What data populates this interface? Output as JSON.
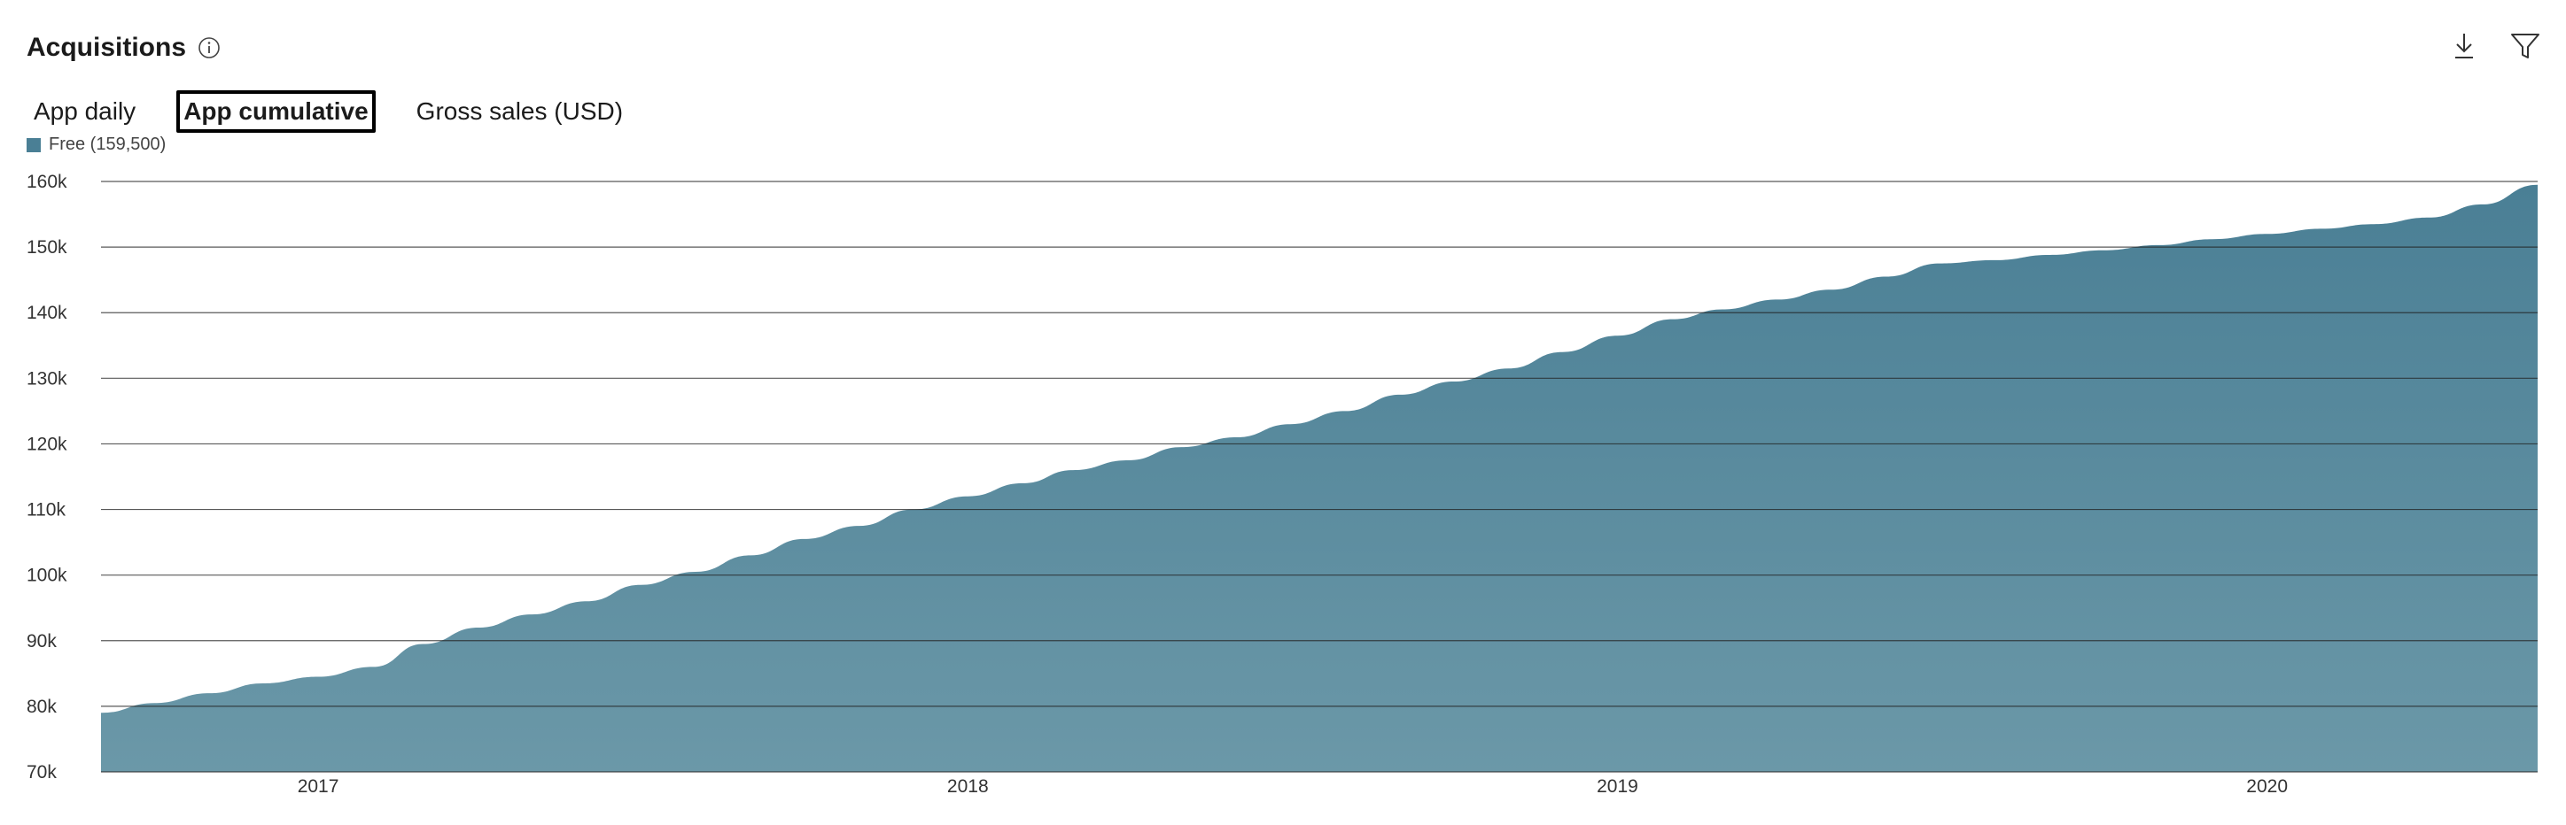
{
  "header": {
    "title": "Acquisitions",
    "info_icon": "info-icon",
    "download_icon": "download-icon",
    "filter_icon": "filter-icon"
  },
  "tabs": [
    {
      "label": "App daily",
      "active": false
    },
    {
      "label": "App cumulative",
      "active": true
    },
    {
      "label": "Gross sales (USD)",
      "active": false
    }
  ],
  "legend": {
    "label": "Free (159,500)",
    "color": "#4a7f95"
  },
  "colors": {
    "area_top": "#4a7f95",
    "area_bottom": "#6b98a8",
    "gridline": "#222222"
  },
  "chart_data": {
    "type": "area",
    "title": "",
    "xlabel": "",
    "ylabel": "",
    "x_ticks": [
      "2017",
      "2018",
      "2019",
      "2020"
    ],
    "y_ticks": [
      "70k",
      "80k",
      "90k",
      "100k",
      "110k",
      "120k",
      "130k",
      "140k",
      "150k",
      "160k"
    ],
    "xlim": [
      "2016-09-01",
      "2020-06-01"
    ],
    "ylim": [
      70000,
      160000
    ],
    "grid": true,
    "legend_position": "top-left",
    "series": [
      {
        "name": "Free (159,500)",
        "x": [
          "2016-09-01",
          "2016-10-01",
          "2016-11-01",
          "2016-12-01",
          "2017-01-01",
          "2017-02-01",
          "2017-03-01",
          "2017-04-01",
          "2017-05-01",
          "2017-06-01",
          "2017-07-01",
          "2017-08-01",
          "2017-09-01",
          "2017-10-01",
          "2017-11-01",
          "2017-12-01",
          "2018-01-01",
          "2018-02-01",
          "2018-03-01",
          "2018-04-01",
          "2018-05-01",
          "2018-06-01",
          "2018-07-01",
          "2018-08-01",
          "2018-09-01",
          "2018-10-01",
          "2018-11-01",
          "2018-12-01",
          "2019-01-01",
          "2019-02-01",
          "2019-03-01",
          "2019-04-01",
          "2019-05-01",
          "2019-06-01",
          "2019-07-01",
          "2019-08-01",
          "2019-09-01",
          "2019-10-01",
          "2019-11-01",
          "2019-12-01",
          "2020-01-01",
          "2020-02-01",
          "2020-03-01",
          "2020-04-01",
          "2020-05-01",
          "2020-06-01"
        ],
        "values": [
          79000,
          80500,
          82000,
          83500,
          84500,
          86000,
          89500,
          92000,
          94000,
          96000,
          98500,
          100500,
          103000,
          105500,
          107500,
          110000,
          112000,
          114000,
          116000,
          117500,
          119500,
          121000,
          123000,
          125000,
          127500,
          129500,
          131500,
          134000,
          136500,
          139000,
          140500,
          142000,
          143500,
          145500,
          147500,
          148000,
          148800,
          149500,
          150300,
          151200,
          152000,
          152800,
          153500,
          154500,
          156500,
          159500
        ]
      }
    ]
  }
}
